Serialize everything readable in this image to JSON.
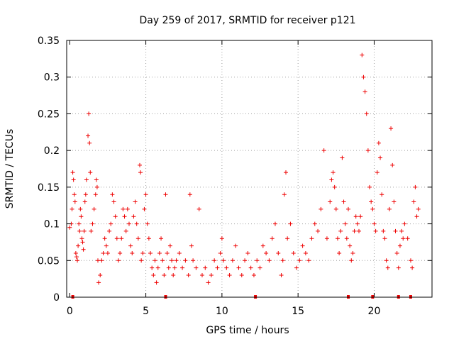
{
  "chart_data": {
    "type": "scatter",
    "title": "Day 259 of 2017, SRMTID for receiver p121",
    "xlabel": "GPS time / hours",
    "ylabel": "SRMTID / TECUs",
    "xlim": [
      -0.2,
      23.8
    ],
    "ylim": [
      0,
      0.35
    ],
    "xticks": [
      0,
      5,
      10,
      15,
      20
    ],
    "yticks": [
      0,
      0.05,
      0.1,
      0.15,
      0.2,
      0.25,
      0.3,
      0.35
    ],
    "xtick_labels": [
      "0",
      "5",
      "10",
      "15",
      "20"
    ],
    "ytick_labels": [
      "0",
      "0.05",
      "0.1",
      "0.15",
      "0.2",
      "0.25",
      "0.3",
      "0.35"
    ],
    "grid": true,
    "marker": "+",
    "color": "#ee0000",
    "series": [
      {
        "name": "SRMTID",
        "points": [
          [
            0.0,
            0.095
          ],
          [
            0.1,
            0.1
          ],
          [
            0.15,
            0.12
          ],
          [
            0.2,
            0.17
          ],
          [
            0.25,
            0.16
          ],
          [
            0.3,
            0.14
          ],
          [
            0.35,
            0.13
          ],
          [
            0.4,
            0.06
          ],
          [
            0.45,
            0.055
          ],
          [
            0.5,
            0.05
          ],
          [
            0.55,
            0.07
          ],
          [
            0.6,
            0.1
          ],
          [
            0.65,
            0.09
          ],
          [
            0.7,
            0.12
          ],
          [
            0.75,
            0.11
          ],
          [
            0.8,
            0.08
          ],
          [
            0.85,
            0.075
          ],
          [
            0.9,
            0.065
          ],
          [
            0.95,
            0.09
          ],
          [
            1.0,
            0.13
          ],
          [
            1.05,
            0.14
          ],
          [
            1.1,
            0.16
          ],
          [
            1.2,
            0.22
          ],
          [
            1.25,
            0.25
          ],
          [
            1.3,
            0.21
          ],
          [
            1.35,
            0.17
          ],
          [
            1.4,
            0.09
          ],
          [
            1.5,
            0.1
          ],
          [
            1.6,
            0.12
          ],
          [
            1.7,
            0.14
          ],
          [
            1.75,
            0.16
          ],
          [
            1.8,
            0.15
          ],
          [
            1.85,
            0.05
          ],
          [
            1.9,
            0.02
          ],
          [
            2.0,
            0.03
          ],
          [
            2.1,
            0.05
          ],
          [
            2.2,
            0.06
          ],
          [
            2.3,
            0.08
          ],
          [
            2.4,
            0.07
          ],
          [
            2.5,
            0.06
          ],
          [
            2.6,
            0.09
          ],
          [
            2.7,
            0.1
          ],
          [
            2.8,
            0.14
          ],
          [
            2.9,
            0.13
          ],
          [
            3.0,
            0.11
          ],
          [
            3.1,
            0.08
          ],
          [
            3.2,
            0.05
          ],
          [
            3.3,
            0.06
          ],
          [
            3.4,
            0.08
          ],
          [
            3.5,
            0.12
          ],
          [
            3.6,
            0.11
          ],
          [
            3.7,
            0.09
          ],
          [
            3.8,
            0.12
          ],
          [
            3.9,
            0.1
          ],
          [
            4.0,
            0.07
          ],
          [
            4.1,
            0.06
          ],
          [
            4.2,
            0.11
          ],
          [
            4.3,
            0.13
          ],
          [
            4.4,
            0.1
          ],
          [
            4.5,
            0.08
          ],
          [
            4.6,
            0.18
          ],
          [
            4.65,
            0.17
          ],
          [
            4.7,
            0.05
          ],
          [
            4.8,
            0.06
          ],
          [
            4.9,
            0.12
          ],
          [
            5.0,
            0.14
          ],
          [
            5.1,
            0.1
          ],
          [
            5.2,
            0.08
          ],
          [
            5.3,
            0.06
          ],
          [
            5.4,
            0.04
          ],
          [
            5.5,
            0.03
          ],
          [
            5.6,
            0.05
          ],
          [
            5.7,
            0.02
          ],
          [
            5.8,
            0.04
          ],
          [
            5.9,
            0.06
          ],
          [
            6.0,
            0.08
          ],
          [
            6.1,
            0.05
          ],
          [
            6.2,
            0.03
          ],
          [
            6.3,
            0.14
          ],
          [
            6.4,
            0.06
          ],
          [
            6.5,
            0.04
          ],
          [
            6.6,
            0.07
          ],
          [
            6.7,
            0.05
          ],
          [
            6.8,
            0.03
          ],
          [
            6.9,
            0.04
          ],
          [
            7.0,
            0.05
          ],
          [
            7.2,
            0.06
          ],
          [
            7.4,
            0.04
          ],
          [
            7.6,
            0.05
          ],
          [
            7.8,
            0.03
          ],
          [
            7.9,
            0.14
          ],
          [
            8.0,
            0.07
          ],
          [
            8.1,
            0.05
          ],
          [
            8.3,
            0.04
          ],
          [
            8.5,
            0.12
          ],
          [
            8.7,
            0.03
          ],
          [
            8.9,
            0.04
          ],
          [
            9.1,
            0.02
          ],
          [
            9.3,
            0.03
          ],
          [
            9.5,
            0.05
          ],
          [
            9.7,
            0.04
          ],
          [
            9.9,
            0.06
          ],
          [
            10.0,
            0.08
          ],
          [
            10.1,
            0.05
          ],
          [
            10.3,
            0.04
          ],
          [
            10.5,
            0.03
          ],
          [
            10.7,
            0.05
          ],
          [
            10.9,
            0.07
          ],
          [
            11.1,
            0.04
          ],
          [
            11.3,
            0.03
          ],
          [
            11.5,
            0.05
          ],
          [
            11.7,
            0.06
          ],
          [
            11.9,
            0.04
          ],
          [
            12.1,
            0.03
          ],
          [
            12.3,
            0.05
          ],
          [
            12.5,
            0.04
          ],
          [
            12.7,
            0.07
          ],
          [
            12.9,
            0.06
          ],
          [
            13.1,
            0.05
          ],
          [
            13.3,
            0.08
          ],
          [
            13.5,
            0.1
          ],
          [
            13.7,
            0.06
          ],
          [
            13.9,
            0.03
          ],
          [
            14.0,
            0.05
          ],
          [
            14.1,
            0.14
          ],
          [
            14.2,
            0.17
          ],
          [
            14.3,
            0.08
          ],
          [
            14.5,
            0.1
          ],
          [
            14.7,
            0.06
          ],
          [
            14.9,
            0.04
          ],
          [
            15.1,
            0.05
          ],
          [
            15.3,
            0.07
          ],
          [
            15.5,
            0.06
          ],
          [
            15.7,
            0.05
          ],
          [
            15.9,
            0.08
          ],
          [
            16.1,
            0.1
          ],
          [
            16.3,
            0.09
          ],
          [
            16.5,
            0.12
          ],
          [
            16.7,
            0.2
          ],
          [
            16.9,
            0.08
          ],
          [
            17.1,
            0.13
          ],
          [
            17.2,
            0.16
          ],
          [
            17.3,
            0.17
          ],
          [
            17.4,
            0.15
          ],
          [
            17.5,
            0.12
          ],
          [
            17.6,
            0.08
          ],
          [
            17.7,
            0.06
          ],
          [
            17.8,
            0.09
          ],
          [
            17.9,
            0.19
          ],
          [
            18.0,
            0.13
          ],
          [
            18.1,
            0.1
          ],
          [
            18.2,
            0.08
          ],
          [
            18.3,
            0.12
          ],
          [
            18.4,
            0.07
          ],
          [
            18.5,
            0.05
          ],
          [
            18.6,
            0.06
          ],
          [
            18.7,
            0.09
          ],
          [
            18.8,
            0.11
          ],
          [
            18.9,
            0.1
          ],
          [
            19.0,
            0.09
          ],
          [
            19.1,
            0.11
          ],
          [
            19.2,
            0.33
          ],
          [
            19.3,
            0.3
          ],
          [
            19.4,
            0.28
          ],
          [
            19.5,
            0.25
          ],
          [
            19.6,
            0.2
          ],
          [
            19.7,
            0.15
          ],
          [
            19.8,
            0.13
          ],
          [
            19.9,
            0.12
          ],
          [
            20.0,
            0.1
          ],
          [
            20.1,
            0.09
          ],
          [
            20.2,
            0.17
          ],
          [
            20.3,
            0.21
          ],
          [
            20.4,
            0.19
          ],
          [
            20.5,
            0.14
          ],
          [
            20.6,
            0.09
          ],
          [
            20.7,
            0.08
          ],
          [
            20.8,
            0.05
          ],
          [
            20.9,
            0.04
          ],
          [
            21.0,
            0.12
          ],
          [
            21.1,
            0.23
          ],
          [
            21.2,
            0.18
          ],
          [
            21.3,
            0.13
          ],
          [
            21.4,
            0.09
          ],
          [
            21.5,
            0.06
          ],
          [
            21.6,
            0.04
          ],
          [
            21.7,
            0.07
          ],
          [
            21.8,
            0.09
          ],
          [
            21.9,
            0.08
          ],
          [
            22.0,
            0.1
          ],
          [
            22.2,
            0.08
          ],
          [
            22.4,
            0.05
          ],
          [
            22.5,
            0.04
          ],
          [
            22.6,
            0.13
          ],
          [
            22.7,
            0.15
          ],
          [
            22.8,
            0.11
          ],
          [
            22.9,
            0.12
          ]
        ]
      }
    ],
    "zero_markers": [
      0.2,
      6.3,
      12.2,
      18.3,
      19.9,
      21.6,
      22.4
    ]
  }
}
